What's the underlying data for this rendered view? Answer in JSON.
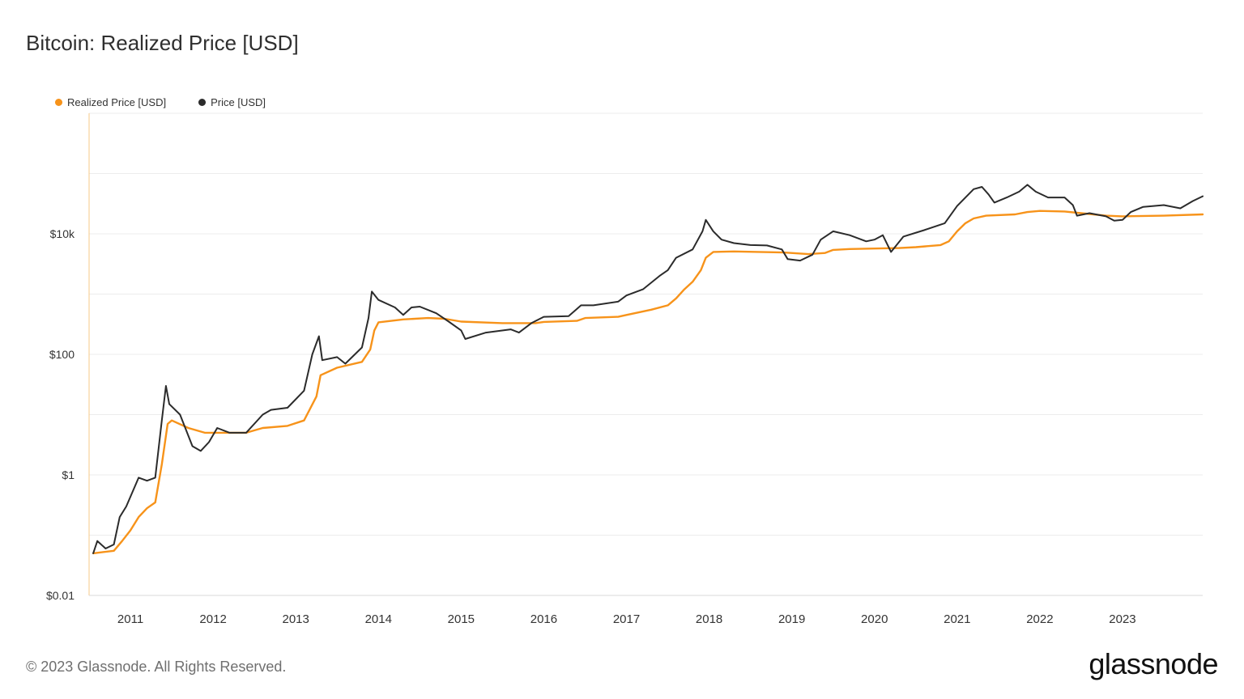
{
  "title": "Bitcoin: Realized Price [USD]",
  "legend": [
    {
      "label": "Realized Price [USD]",
      "color": "#f7931a"
    },
    {
      "label": "Price [USD]",
      "color": "#2b2b2b"
    }
  ],
  "footer": "© 2023 Glassnode. All Rights Reserved.",
  "logo": "glassnode",
  "chart_data": {
    "type": "line",
    "title": "Bitcoin: Realized Price [USD]",
    "y_scale": "log",
    "ylim": [
      0.01,
      1000000
    ],
    "xlim": [
      2010.5,
      2023.97
    ],
    "y_ticks": [
      {
        "value": 0.01,
        "label": "$0.01"
      },
      {
        "value": 1,
        "label": "$1"
      },
      {
        "value": 100,
        "label": "$100"
      },
      {
        "value": 10000,
        "label": "$10k"
      }
    ],
    "x_ticks": [
      "2011",
      "2012",
      "2013",
      "2014",
      "2015",
      "2016",
      "2017",
      "2018",
      "2019",
      "2020",
      "2021",
      "2022",
      "2023"
    ],
    "grid": true,
    "legend_position": "top-left",
    "series": [
      {
        "name": "Realized Price [USD]",
        "color": "#f7931a",
        "points": [
          [
            2010.55,
            0.05
          ],
          [
            2010.8,
            0.055
          ],
          [
            2010.9,
            0.08
          ],
          [
            2011.0,
            0.12
          ],
          [
            2011.1,
            0.2
          ],
          [
            2011.2,
            0.28
          ],
          [
            2011.3,
            0.35
          ],
          [
            2011.38,
            1.5
          ],
          [
            2011.45,
            7
          ],
          [
            2011.5,
            8
          ],
          [
            2011.7,
            6
          ],
          [
            2011.9,
            5
          ],
          [
            2012.1,
            5
          ],
          [
            2012.4,
            5
          ],
          [
            2012.6,
            6
          ],
          [
            2012.9,
            6.5
          ],
          [
            2013.1,
            8
          ],
          [
            2013.25,
            20
          ],
          [
            2013.3,
            45
          ],
          [
            2013.5,
            60
          ],
          [
            2013.8,
            75
          ],
          [
            2013.9,
            120
          ],
          [
            2013.95,
            250
          ],
          [
            2014.0,
            340
          ],
          [
            2014.3,
            380
          ],
          [
            2014.6,
            400
          ],
          [
            2014.8,
            390
          ],
          [
            2015.0,
            350
          ],
          [
            2015.5,
            330
          ],
          [
            2015.9,
            330
          ],
          [
            2016.0,
            345
          ],
          [
            2016.4,
            360
          ],
          [
            2016.5,
            400
          ],
          [
            2016.9,
            420
          ],
          [
            2017.0,
            450
          ],
          [
            2017.3,
            550
          ],
          [
            2017.5,
            650
          ],
          [
            2017.6,
            850
          ],
          [
            2017.7,
            1200
          ],
          [
            2017.8,
            1600
          ],
          [
            2017.9,
            2500
          ],
          [
            2017.96,
            4000
          ],
          [
            2018.05,
            5000
          ],
          [
            2018.3,
            5100
          ],
          [
            2018.6,
            5000
          ],
          [
            2018.9,
            4900
          ],
          [
            2019.2,
            4600
          ],
          [
            2019.4,
            4800
          ],
          [
            2019.5,
            5400
          ],
          [
            2019.7,
            5600
          ],
          [
            2020.0,
            5700
          ],
          [
            2020.3,
            5800
          ],
          [
            2020.5,
            6000
          ],
          [
            2020.8,
            6500
          ],
          [
            2020.9,
            7500
          ],
          [
            2021.0,
            11000
          ],
          [
            2021.1,
            15000
          ],
          [
            2021.2,
            18000
          ],
          [
            2021.35,
            20000
          ],
          [
            2021.7,
            21000
          ],
          [
            2021.85,
            23000
          ],
          [
            2022.0,
            24000
          ],
          [
            2022.3,
            23500
          ],
          [
            2022.5,
            22000
          ],
          [
            2022.8,
            20000
          ],
          [
            2023.0,
            19500
          ],
          [
            2023.5,
            20000
          ],
          [
            2023.97,
            21000
          ]
        ]
      },
      {
        "name": "Price [USD]",
        "color": "#2b2b2b",
        "points": [
          [
            2010.55,
            0.05
          ],
          [
            2010.6,
            0.08
          ],
          [
            2010.7,
            0.06
          ],
          [
            2010.8,
            0.07
          ],
          [
            2010.87,
            0.2
          ],
          [
            2010.95,
            0.3
          ],
          [
            2011.1,
            0.9
          ],
          [
            2011.2,
            0.8
          ],
          [
            2011.3,
            0.9
          ],
          [
            2011.38,
            8
          ],
          [
            2011.43,
            30
          ],
          [
            2011.47,
            15
          ],
          [
            2011.6,
            10
          ],
          [
            2011.75,
            3
          ],
          [
            2011.85,
            2.5
          ],
          [
            2011.95,
            3.5
          ],
          [
            2012.05,
            6
          ],
          [
            2012.2,
            5
          ],
          [
            2012.4,
            5
          ],
          [
            2012.6,
            10
          ],
          [
            2012.7,
            12
          ],
          [
            2012.9,
            13
          ],
          [
            2013.1,
            25
          ],
          [
            2013.2,
            100
          ],
          [
            2013.28,
            200
          ],
          [
            2013.32,
            80
          ],
          [
            2013.5,
            90
          ],
          [
            2013.6,
            70
          ],
          [
            2013.8,
            130
          ],
          [
            2013.88,
            400
          ],
          [
            2013.92,
            1100
          ],
          [
            2014.0,
            800
          ],
          [
            2014.2,
            600
          ],
          [
            2014.3,
            450
          ],
          [
            2014.4,
            600
          ],
          [
            2014.5,
            620
          ],
          [
            2014.7,
            480
          ],
          [
            2014.85,
            350
          ],
          [
            2015.0,
            250
          ],
          [
            2015.05,
            180
          ],
          [
            2015.3,
            230
          ],
          [
            2015.6,
            260
          ],
          [
            2015.7,
            230
          ],
          [
            2015.85,
            330
          ],
          [
            2016.0,
            420
          ],
          [
            2016.3,
            430
          ],
          [
            2016.45,
            650
          ],
          [
            2016.6,
            650
          ],
          [
            2016.9,
            750
          ],
          [
            2017.0,
            950
          ],
          [
            2017.2,
            1200
          ],
          [
            2017.4,
            2000
          ],
          [
            2017.5,
            2500
          ],
          [
            2017.6,
            4000
          ],
          [
            2017.8,
            5500
          ],
          [
            2017.92,
            11000
          ],
          [
            2017.96,
            17000
          ],
          [
            2018.05,
            11000
          ],
          [
            2018.15,
            8000
          ],
          [
            2018.3,
            7000
          ],
          [
            2018.5,
            6500
          ],
          [
            2018.7,
            6400
          ],
          [
            2018.88,
            5500
          ],
          [
            2018.95,
            3800
          ],
          [
            2019.1,
            3600
          ],
          [
            2019.25,
            4500
          ],
          [
            2019.35,
            8000
          ],
          [
            2019.5,
            11000
          ],
          [
            2019.7,
            9500
          ],
          [
            2019.9,
            7500
          ],
          [
            2020.0,
            8000
          ],
          [
            2020.1,
            9500
          ],
          [
            2020.2,
            5000
          ],
          [
            2020.35,
            9000
          ],
          [
            2020.6,
            11500
          ],
          [
            2020.85,
            15000
          ],
          [
            2021.0,
            29000
          ],
          [
            2021.2,
            55000
          ],
          [
            2021.3,
            60000
          ],
          [
            2021.38,
            45000
          ],
          [
            2021.45,
            33000
          ],
          [
            2021.6,
            40000
          ],
          [
            2021.75,
            50000
          ],
          [
            2021.85,
            65000
          ],
          [
            2021.95,
            50000
          ],
          [
            2022.1,
            40000
          ],
          [
            2022.3,
            40000
          ],
          [
            2022.4,
            30000
          ],
          [
            2022.45,
            20000
          ],
          [
            2022.6,
            22000
          ],
          [
            2022.8,
            19500
          ],
          [
            2022.9,
            16500
          ],
          [
            2023.0,
            17000
          ],
          [
            2023.1,
            23000
          ],
          [
            2023.25,
            28000
          ],
          [
            2023.5,
            30000
          ],
          [
            2023.7,
            26500
          ],
          [
            2023.85,
            35000
          ],
          [
            2023.97,
            42000
          ]
        ]
      }
    ]
  }
}
